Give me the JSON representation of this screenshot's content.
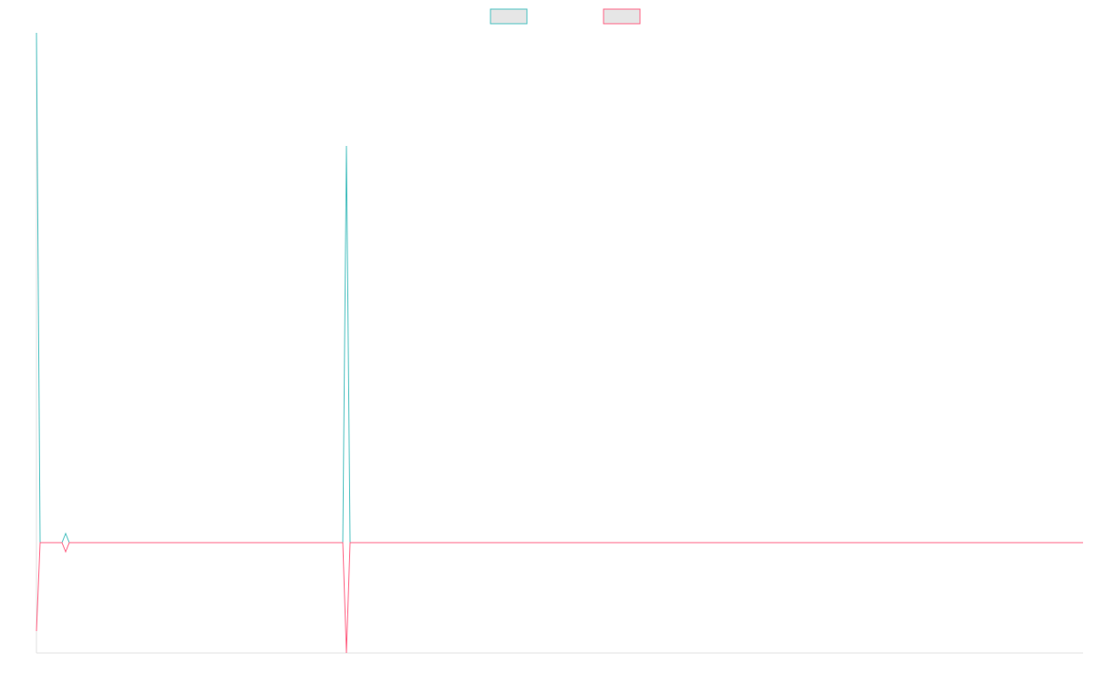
{
  "chart_data": {
    "type": "line",
    "x": [
      0,
      1,
      7,
      8,
      9,
      84,
      85,
      86,
      287
    ],
    "series": [
      {
        "color": "#4bc0c0",
        "values": [
          5.59,
          0,
          0,
          0.1,
          0,
          0,
          4.35,
          0,
          0
        ]
      },
      {
        "color": "#ff6384",
        "values": [
          -0.97,
          0,
          0,
          -0.1,
          0,
          0,
          -1.21,
          0,
          0
        ]
      }
    ],
    "xlim": [
      0,
      287
    ],
    "ylim": [
      -1.21,
      5.59
    ],
    "legend": "top"
  }
}
